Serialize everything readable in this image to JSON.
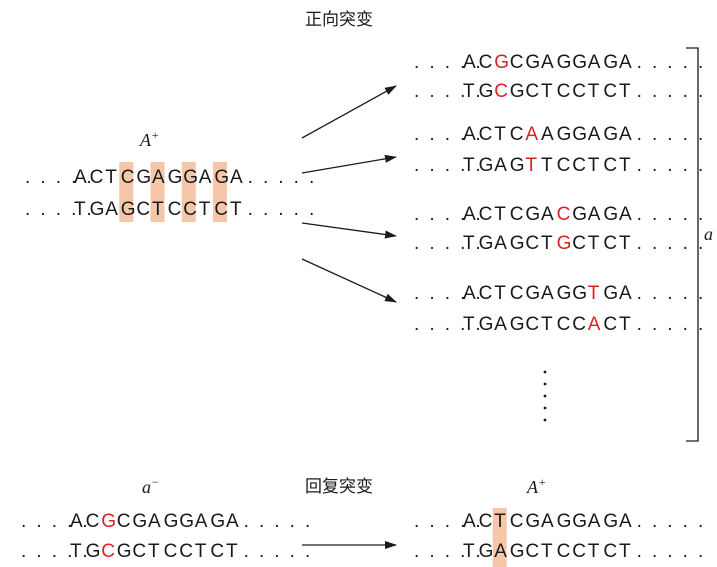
{
  "labels": {
    "forward": "正向突变",
    "reverse": "回复突变",
    "wild_top": "A+",
    "bracket": "a",
    "rev_left": "a−",
    "rev_right": "A+"
  },
  "dots": ". . . . .",
  "wild_type": {
    "top": "ACTCGAGGAGA",
    "bottom": "TGAGCTCCTCT",
    "highlight_positions": [
      3,
      5,
      7,
      9
    ]
  },
  "forward_mutants": [
    {
      "top": "ACGCGAGGAGA",
      "bottom": "TGCGCTCCTCT",
      "mutated_position": 2
    },
    {
      "top": "ACTCAAGGAGA",
      "bottom": "TGAGTTCCTCT",
      "mutated_position": 4
    },
    {
      "top": "ACTCGACGAGA",
      "bottom": "TGAGCTGCTCT",
      "mutated_position": 6
    },
    {
      "top": "ACTCGAGGTGA",
      "bottom": "TGAGCTCCACT",
      "mutated_position": 8
    }
  ],
  "reverse_mutation": {
    "from": {
      "top": "ACGCGAGGAGA",
      "bottom": "TGCGCTCCTCT",
      "mutated_position": 2
    },
    "to": {
      "top": "ACTCGAGGAGA",
      "bottom": "TGAGCTCCTCT",
      "highlight_position": 2
    }
  },
  "colors": {
    "mutation": "#e02020",
    "highlight": "#f6c6a8",
    "text": "#1a1a1a"
  }
}
